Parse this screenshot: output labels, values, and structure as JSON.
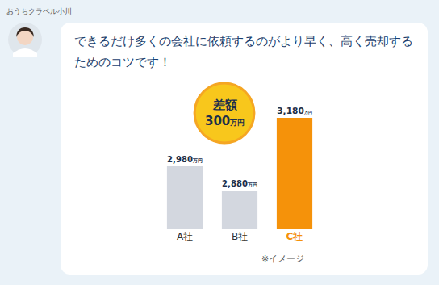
{
  "speaker": "おうちクラベル小川",
  "message": "できるだけ多くの会社に依頼するのがより早く、高く売却するためのコツです！",
  "chart_data": {
    "type": "bar",
    "categories": [
      "A社",
      "B社",
      "C社"
    ],
    "values": [
      2980,
      2880,
      3180
    ],
    "value_labels": [
      "2,980万円",
      "2,880万円",
      "3,180万円"
    ],
    "colors": [
      "#d3d7df",
      "#d3d7df",
      "#f5920a"
    ],
    "data_labels": true,
    "tick_labels": "x",
    "ylim": [
      2720,
      3300
    ],
    "yticks": [],
    "annotations": [
      {
        "lines": [
          "差額",
          "300万円"
        ]
      },
      {
        "lines": [
          "※イメージ"
        ]
      }
    ]
  }
}
